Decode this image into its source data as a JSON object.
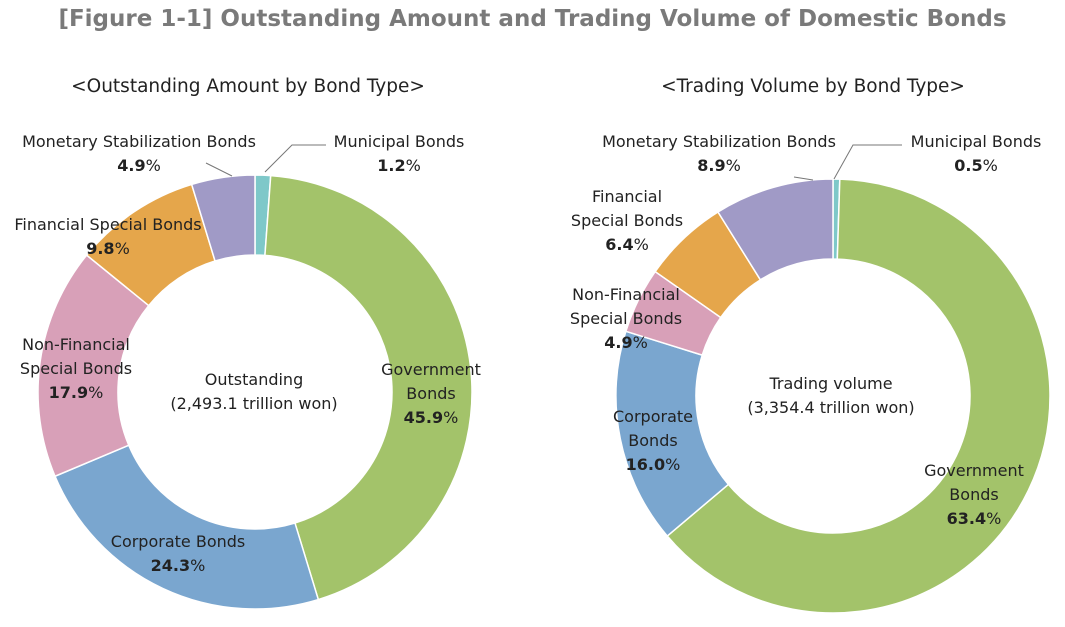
{
  "figure_title": "[Figure 1-1] Outstanding Amount and Trading Volume of Domestic Bonds",
  "chart_data": [
    {
      "type": "pie",
      "subtitle": "<Outstanding Amount by Bond Type>",
      "center_label": "Outstanding",
      "center_sublabel": "(2,493.1 trillion won)",
      "slices": [
        {
          "name": "Municipal Bonds",
          "value": 1.2,
          "display": "1.2",
          "color": "#7ec8c9"
        },
        {
          "name": "Government Bonds",
          "value": 45.9,
          "display": "45.9",
          "color": "#a3c36a"
        },
        {
          "name": "Corporate Bonds",
          "value": 24.3,
          "display": "24.3",
          "color": "#7aa6cf"
        },
        {
          "name": "Non-Financial Special Bonds",
          "value": 17.9,
          "display": "17.9",
          "color": "#d8a0b8"
        },
        {
          "name": "Financial Special Bonds",
          "value": 9.8,
          "display": "9.8",
          "color": "#e5a64b"
        },
        {
          "name": "Monetary Stabilization Bonds",
          "value": 4.9,
          "display": "4.9",
          "color": "#a09ac6"
        }
      ]
    },
    {
      "type": "pie",
      "subtitle": "<Trading Volume by Bond Type>",
      "center_label": "Trading volume",
      "center_sublabel": "(3,354.4 trillion won)",
      "slices": [
        {
          "name": "Municipal Bonds",
          "value": 0.5,
          "display": "0.5",
          "color": "#7ec8c9"
        },
        {
          "name": "Government Bonds",
          "value": 63.4,
          "display": "63.4",
          "color": "#a3c36a"
        },
        {
          "name": "Corporate Bonds",
          "value": 16.0,
          "display": "16.0",
          "color": "#7aa6cf"
        },
        {
          "name": "Non-Financial Special Bonds",
          "value": 4.9,
          "display": "4.9",
          "color": "#d8a0b8"
        },
        {
          "name": "Financial Special Bonds",
          "value": 6.4,
          "display": "6.4",
          "color": "#e5a64b"
        },
        {
          "name": "Monetary Stabilization Bonds",
          "value": 8.9,
          "display": "8.9",
          "color": "#a09ac6"
        }
      ]
    }
  ],
  "labels": {
    "unit": "%",
    "left": {
      "municipal": [
        "Municipal Bonds"
      ],
      "government": [
        "Government",
        "Bonds"
      ],
      "corporate": [
        "Corporate Bonds"
      ],
      "nonfin": [
        "Non-Financial",
        "Special Bonds"
      ],
      "fin": [
        "Financial Special Bonds"
      ],
      "msb": [
        "Monetary Stabilization Bonds"
      ]
    },
    "right": {
      "municipal": [
        "Municipal Bonds"
      ],
      "government": [
        "Government",
        "Bonds"
      ],
      "corporate": [
        "Corporate",
        "Bonds"
      ],
      "nonfin": [
        "Non-Financial",
        "Special Bonds"
      ],
      "fin": [
        "Financial",
        "Special Bonds"
      ],
      "msb": [
        "Monetary Stabilization Bonds"
      ]
    }
  }
}
